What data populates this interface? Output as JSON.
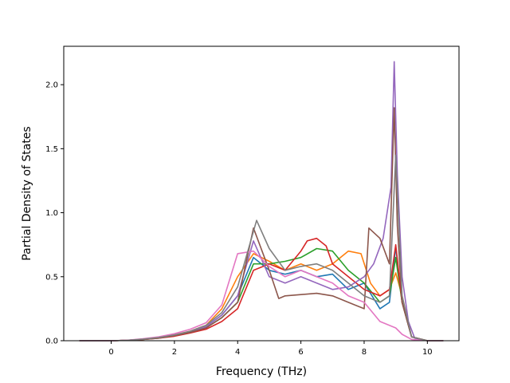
{
  "chart_data": {
    "type": "line",
    "title": "",
    "xlabel": "Frequency (THz)",
    "ylabel": "Partial Density of States",
    "xlim": [
      -1.5,
      11.0
    ],
    "ylim": [
      0.0,
      2.3
    ],
    "xticks": [
      0,
      2,
      4,
      6,
      8,
      10
    ],
    "xtick_labels": [
      "0",
      "2",
      "4",
      "6",
      "8",
      "10"
    ],
    "yticks": [
      0.0,
      0.5,
      1.0,
      1.5,
      2.0
    ],
    "ytick_labels": [
      "0.0",
      "0.5",
      "1.0",
      "1.5",
      "2.0"
    ],
    "grid": false,
    "legend": "none",
    "series": [
      {
        "color": "#1f77b4",
        "x": [
          -1.0,
          0.0,
          0.5,
          1.0,
          1.5,
          2.0,
          2.5,
          3.0,
          3.5,
          4.0,
          4.5,
          5.0,
          5.5,
          6.0,
          6.5,
          7.0,
          7.5,
          8.0,
          8.5,
          8.8,
          9.0,
          9.2,
          9.5,
          10.0,
          10.5
        ],
        "y": [
          0.0,
          0.0,
          0.003,
          0.012,
          0.025,
          0.045,
          0.07,
          0.11,
          0.2,
          0.35,
          0.65,
          0.55,
          0.52,
          0.55,
          0.5,
          0.52,
          0.4,
          0.45,
          0.25,
          0.3,
          0.73,
          0.3,
          0.03,
          0.0,
          0.0
        ]
      },
      {
        "color": "#ff7f0e",
        "x": [
          -1.0,
          0.0,
          0.5,
          1.0,
          1.5,
          2.0,
          2.5,
          3.0,
          3.5,
          4.0,
          4.5,
          5.0,
          5.5,
          6.0,
          6.5,
          7.0,
          7.5,
          7.9,
          8.2,
          8.5,
          8.8,
          9.0,
          9.2,
          9.5,
          10.0,
          10.5
        ],
        "y": [
          0.0,
          0.0,
          0.003,
          0.012,
          0.025,
          0.045,
          0.075,
          0.12,
          0.25,
          0.5,
          0.68,
          0.62,
          0.55,
          0.6,
          0.55,
          0.6,
          0.7,
          0.68,
          0.45,
          0.35,
          0.4,
          0.53,
          0.35,
          0.03,
          0.0,
          0.0
        ]
      },
      {
        "color": "#2ca02c",
        "x": [
          -1.0,
          0.0,
          0.5,
          1.0,
          1.5,
          2.0,
          2.5,
          3.0,
          3.5,
          4.0,
          4.5,
          5.0,
          5.5,
          6.0,
          6.5,
          7.0,
          7.5,
          8.0,
          8.5,
          8.8,
          9.0,
          9.2,
          9.5,
          10.0,
          10.5
        ],
        "y": [
          0.0,
          0.0,
          0.003,
          0.01,
          0.022,
          0.04,
          0.065,
          0.1,
          0.18,
          0.3,
          0.6,
          0.6,
          0.62,
          0.65,
          0.72,
          0.7,
          0.55,
          0.45,
          0.3,
          0.35,
          0.65,
          0.3,
          0.03,
          0.0,
          0.0
        ]
      },
      {
        "color": "#d62728",
        "x": [
          -1.0,
          0.0,
          0.5,
          1.0,
          1.5,
          2.0,
          2.5,
          3.0,
          3.5,
          4.0,
          4.5,
          5.0,
          5.5,
          6.0,
          6.2,
          6.5,
          6.8,
          7.0,
          7.5,
          8.0,
          8.5,
          8.8,
          9.0,
          9.2,
          9.5,
          10.0,
          10.5
        ],
        "y": [
          0.0,
          0.0,
          0.003,
          0.01,
          0.02,
          0.035,
          0.06,
          0.09,
          0.15,
          0.25,
          0.55,
          0.6,
          0.55,
          0.7,
          0.78,
          0.8,
          0.74,
          0.6,
          0.5,
          0.4,
          0.35,
          0.4,
          0.75,
          0.3,
          0.03,
          0.0,
          0.0
        ]
      },
      {
        "color": "#9467bd",
        "x": [
          -1.0,
          0.0,
          0.5,
          1.0,
          1.5,
          2.0,
          2.5,
          3.0,
          3.5,
          4.0,
          4.5,
          5.0,
          5.5,
          6.0,
          6.5,
          7.0,
          7.5,
          8.0,
          8.3,
          8.6,
          8.85,
          8.95,
          9.05,
          9.2,
          9.4,
          9.6,
          10.0,
          10.5
        ],
        "y": [
          0.0,
          0.0,
          0.003,
          0.012,
          0.025,
          0.045,
          0.07,
          0.11,
          0.2,
          0.35,
          0.78,
          0.5,
          0.45,
          0.5,
          0.45,
          0.4,
          0.42,
          0.5,
          0.6,
          0.8,
          1.2,
          2.18,
          1.3,
          0.5,
          0.15,
          0.02,
          0.0,
          0.0
        ]
      },
      {
        "color": "#8c564b",
        "x": [
          -1.0,
          0.0,
          0.5,
          1.0,
          1.5,
          2.0,
          2.5,
          3.0,
          3.5,
          4.0,
          4.5,
          5.0,
          5.3,
          5.5,
          6.0,
          6.5,
          7.0,
          7.5,
          8.0,
          8.15,
          8.5,
          8.8,
          8.95,
          9.05,
          9.2,
          9.5,
          10.0,
          10.5
        ],
        "y": [
          0.0,
          0.0,
          0.003,
          0.01,
          0.02,
          0.04,
          0.065,
          0.1,
          0.18,
          0.3,
          0.88,
          0.55,
          0.33,
          0.35,
          0.36,
          0.37,
          0.35,
          0.3,
          0.25,
          0.88,
          0.8,
          0.6,
          1.82,
          0.9,
          0.3,
          0.03,
          0.0,
          0.0
        ]
      },
      {
        "color": "#e377c2",
        "x": [
          -1.0,
          0.0,
          0.5,
          1.0,
          1.5,
          2.0,
          2.5,
          3.0,
          3.5,
          4.0,
          4.5,
          5.0,
          5.5,
          6.0,
          6.5,
          7.0,
          7.5,
          8.0,
          8.5,
          8.8,
          9.0,
          9.2,
          9.5,
          10.0,
          10.5
        ],
        "y": [
          0.0,
          0.0,
          0.004,
          0.015,
          0.03,
          0.055,
          0.09,
          0.14,
          0.28,
          0.68,
          0.7,
          0.58,
          0.5,
          0.55,
          0.5,
          0.45,
          0.35,
          0.3,
          0.15,
          0.12,
          0.1,
          0.05,
          0.01,
          0.0,
          0.0
        ]
      },
      {
        "color": "#7f7f7f",
        "x": [
          -1.0,
          0.0,
          0.5,
          1.0,
          1.5,
          2.0,
          2.5,
          3.0,
          3.5,
          4.0,
          4.6,
          5.0,
          5.5,
          6.0,
          6.5,
          7.0,
          7.5,
          8.0,
          8.5,
          8.8,
          9.0,
          9.2,
          9.5,
          10.0,
          10.5
        ],
        "y": [
          0.0,
          0.0,
          0.003,
          0.012,
          0.025,
          0.045,
          0.075,
          0.12,
          0.22,
          0.42,
          0.94,
          0.72,
          0.55,
          0.58,
          0.6,
          0.55,
          0.45,
          0.35,
          0.3,
          0.35,
          1.45,
          0.35,
          0.03,
          0.0,
          0.0
        ]
      }
    ]
  }
}
